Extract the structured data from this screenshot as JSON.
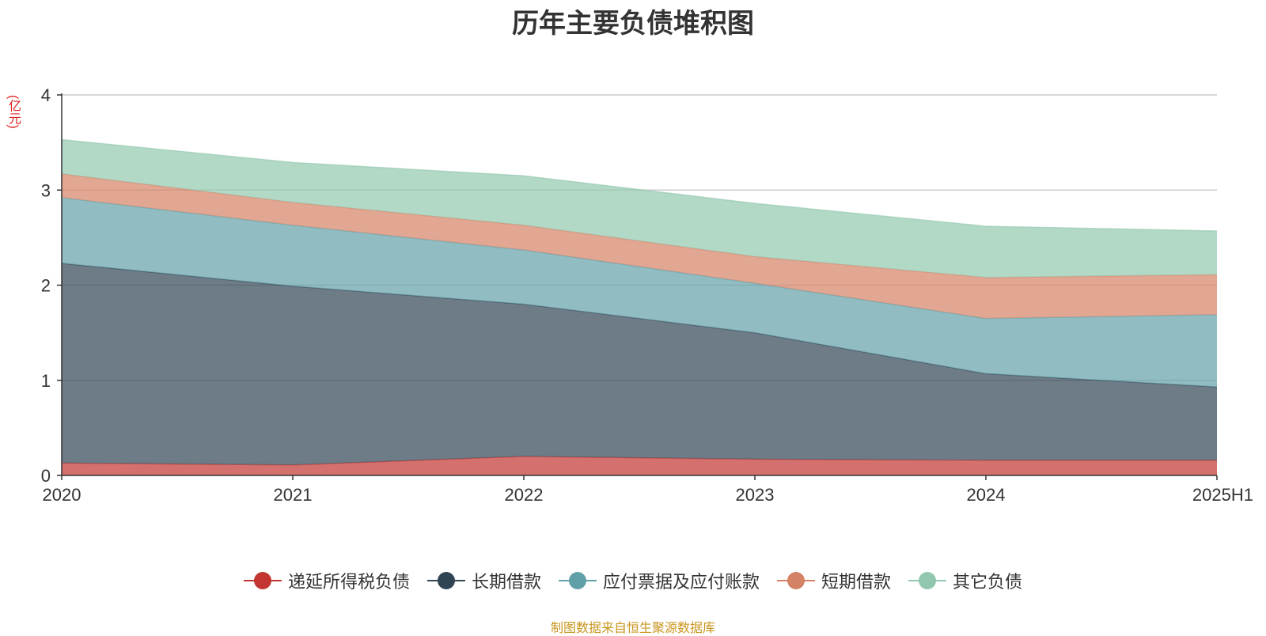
{
  "chart_data": {
    "type": "area",
    "stacked": true,
    "title": "历年主要负债堆积图",
    "unit_label": "(亿元)",
    "categories": [
      "2020",
      "2021",
      "2022",
      "2023",
      "2024",
      "2025H1"
    ],
    "y_ticks": [
      "0",
      "1",
      "2",
      "3",
      "4"
    ],
    "ylim": [
      0,
      4
    ],
    "grid": true,
    "legend_position": "bottom",
    "series": [
      {
        "name": "递延所得税负债",
        "color": "#c23531",
        "values": [
          0.13,
          0.11,
          0.2,
          0.17,
          0.16,
          0.16
        ]
      },
      {
        "name": "长期借款",
        "color": "#2f4554",
        "values": [
          2.1,
          1.88,
          1.6,
          1.33,
          0.91,
          0.77
        ]
      },
      {
        "name": "应付票据及应付账款",
        "color": "#61a0a8",
        "values": [
          0.69,
          0.64,
          0.57,
          0.52,
          0.58,
          0.76
        ]
      },
      {
        "name": "短期借款",
        "color": "#d48265",
        "values": [
          0.25,
          0.24,
          0.26,
          0.28,
          0.43,
          0.42
        ]
      },
      {
        "name": "其它负债",
        "color": "#91c7ae",
        "values": [
          0.36,
          0.42,
          0.52,
          0.56,
          0.54,
          0.46
        ]
      }
    ]
  },
  "footnote": "制图数据来自恒生聚源数据库"
}
